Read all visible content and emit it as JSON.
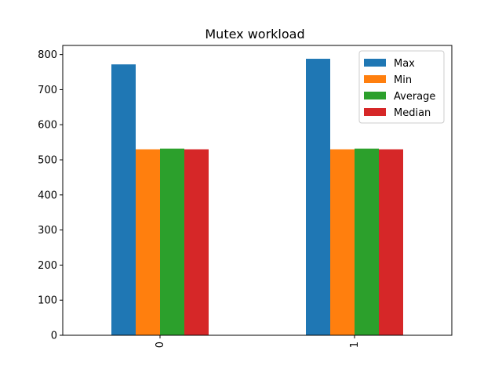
{
  "chart_data": {
    "type": "bar",
    "title": "Mutex workload",
    "xlabel": "",
    "ylabel": "",
    "categories": [
      "0",
      "1"
    ],
    "series": [
      {
        "name": "Max",
        "values": [
          772,
          788
        ],
        "color": "#1f77b4"
      },
      {
        "name": "Min",
        "values": [
          530,
          530
        ],
        "color": "#ff7f0e"
      },
      {
        "name": "Average",
        "values": [
          532,
          532
        ],
        "color": "#2ca02c"
      },
      {
        "name": "Median",
        "values": [
          530,
          530
        ],
        "color": "#d62728"
      }
    ],
    "ylim": [
      0,
      826
    ],
    "yticks": [
      0,
      100,
      200,
      300,
      400,
      500,
      600,
      700,
      800
    ],
    "grid": false,
    "legend_position": "top-right",
    "xtick_rotation": 90
  }
}
